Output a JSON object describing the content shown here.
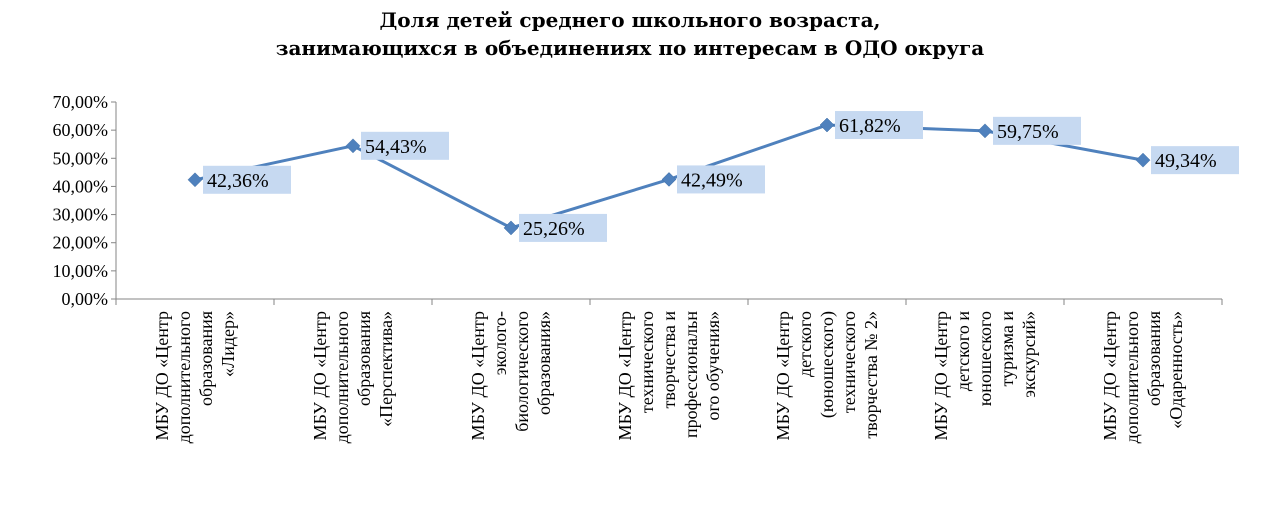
{
  "chart_data": {
    "type": "line",
    "title": [
      "Доля детей среднего школьного возраста,",
      "занимающихся в объединениях по интересам в ОДО округа"
    ],
    "xlabel": "",
    "ylabel": "",
    "ylim": [
      0,
      70
    ],
    "yticks": [
      0,
      10,
      20,
      30,
      40,
      50,
      60,
      70
    ],
    "ytick_labels": [
      "0,00%",
      "10,00%",
      "20,00%",
      "30,00%",
      "40,00%",
      "50,00%",
      "60,00%",
      "70,00%"
    ],
    "grid": false,
    "legend": "none",
    "categories": [
      [
        "МБУ ДО «Центр",
        "дополнительного",
        "образования",
        "«Лидер»"
      ],
      [
        "МБУ ДО «Центр",
        "дополнительного",
        "образования",
        "«Перспектива»"
      ],
      [
        "МБУ ДО «Центр",
        "эколого-",
        "биологического",
        "образования»"
      ],
      [
        "МБУ ДО «Центр",
        "технического",
        "творчества и",
        "профессиональн",
        "ого обучения»"
      ],
      [
        "МБУ ДО «Центр",
        "детского",
        "(юношеского)",
        "технического",
        "творчества № 2»"
      ],
      [
        "МБУ ДО «Центр",
        "детского и",
        "юношеского",
        "туризма и",
        "экскурсий»"
      ],
      [
        "МБУ ДО «Центр",
        "дополнительного",
        "образования",
        "«Одаренность»"
      ]
    ],
    "series": [
      {
        "values": [
          42.36,
          54.43,
          25.26,
          42.49,
          61.82,
          59.75,
          49.34
        ],
        "data_labels": [
          "42,36%",
          "54,43%",
          "25,26%",
          "42,49%",
          "61,82%",
          "59,75%",
          "49,34%"
        ]
      }
    ],
    "colors": {
      "line": "#4f81bd",
      "marker": "#4f81bd",
      "label_bg": "#c6d9f1",
      "axis": "#868686"
    }
  }
}
